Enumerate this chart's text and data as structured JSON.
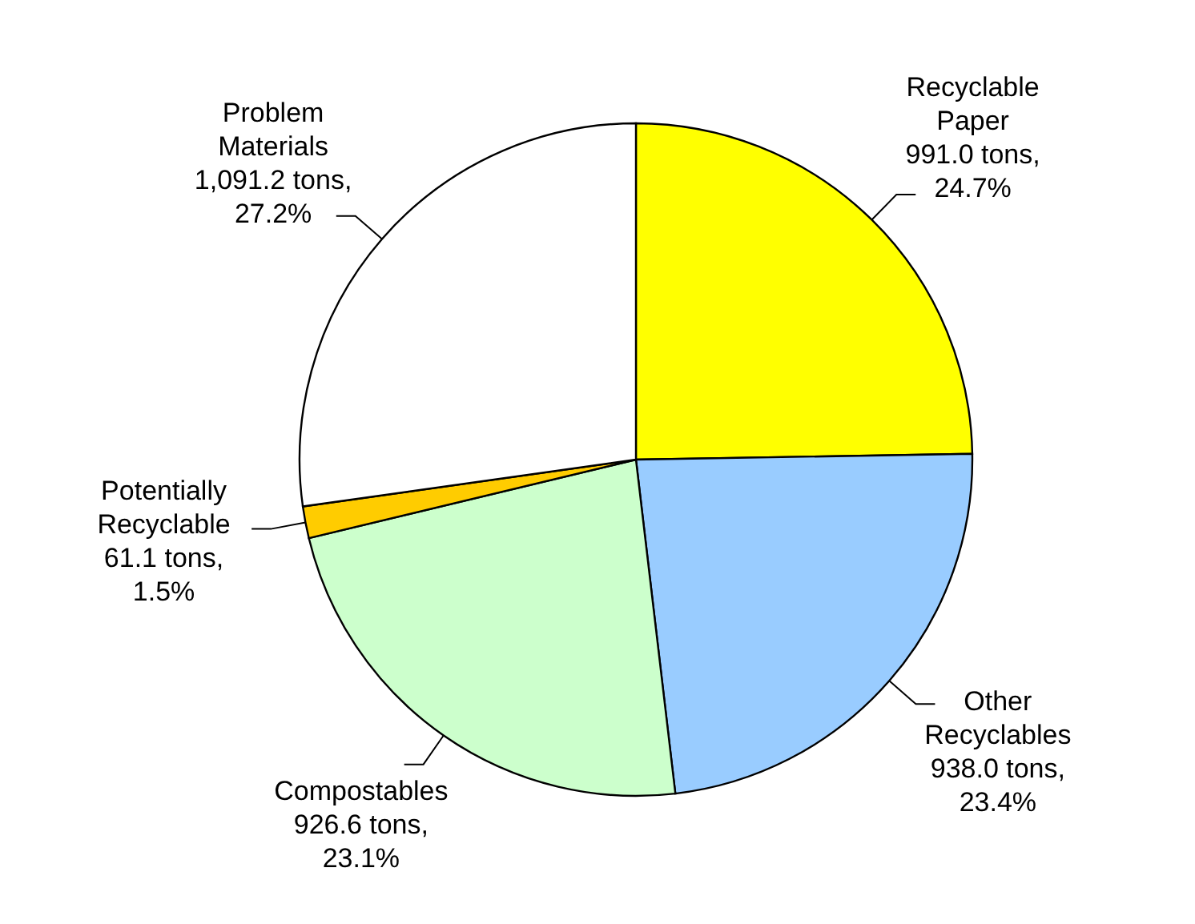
{
  "chart_data": {
    "type": "pie",
    "categories": [
      "Recyclable Paper",
      "Other Recyclables",
      "Compostables",
      "Potentially Recyclable",
      "Problem Materials"
    ],
    "values": [
      991.0,
      938.0,
      926.6,
      61.1,
      1091.2
    ],
    "colors": [
      "#ffff00",
      "#99ccff",
      "#ccffcc",
      "#ffcc00",
      "#ffffff"
    ],
    "value_labels": [
      "991.0 tons, 24.7%",
      "938.0 tons, 23.4%",
      "926.6 tons, 23.1%",
      "61.1 tons, 1.5%",
      "1,091.2 tons, 27.2%"
    ]
  }
}
